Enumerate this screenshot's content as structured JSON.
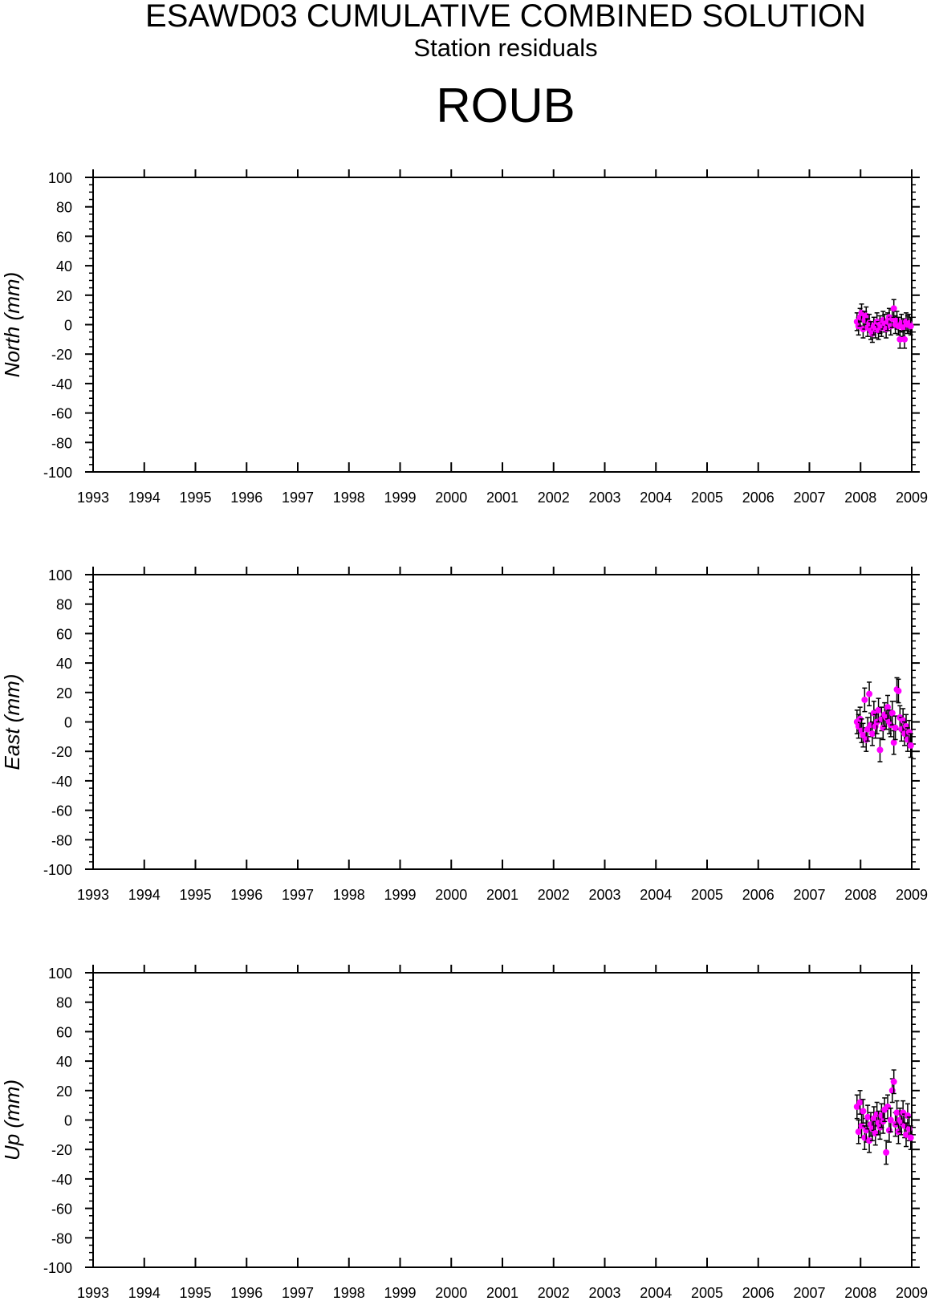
{
  "header": {
    "title": "ESAWD03 CUMULATIVE COMBINED SOLUTION",
    "subtitle": "Station residuals",
    "station": "ROUB"
  },
  "colors": {
    "marker": "#ff00ff",
    "errorbar": "#000000",
    "axis": "#000000"
  },
  "chart_data": [
    {
      "type": "scatter",
      "ylabel": "North (mm)",
      "xlim": [
        1993,
        2009
      ],
      "ylim": [
        -100,
        100
      ],
      "xticks": [
        "1993",
        "1994",
        "1995",
        "1996",
        "1997",
        "1998",
        "1999",
        "2000",
        "2001",
        "2002",
        "2003",
        "2004",
        "2005",
        "2006",
        "2007",
        "2008",
        "2009"
      ],
      "yticks": [
        "100",
        "80",
        "60",
        "40",
        "20",
        "0",
        "-20",
        "-40",
        "-60",
        "-80",
        "-100"
      ],
      "grid": false,
      "error_bar_mm": 6,
      "x": [
        2007.93,
        2007.96,
        2007.99,
        2008.02,
        2008.05,
        2008.08,
        2008.11,
        2008.14,
        2008.17,
        2008.2,
        2008.23,
        2008.26,
        2008.29,
        2008.32,
        2008.35,
        2008.38,
        2008.41,
        2008.44,
        2008.47,
        2008.5,
        2008.53,
        2008.56,
        2008.59,
        2008.62,
        2008.65,
        2008.68,
        2008.71,
        2008.74,
        2008.77,
        2008.8,
        2008.83,
        2008.86,
        2008.89,
        2008.92,
        2008.95,
        2008.98
      ],
      "y": [
        2,
        -1,
        5,
        8,
        -3,
        3,
        6,
        -2,
        1,
        -4,
        -6,
        -1,
        -3,
        2,
        -4,
        0,
        -2,
        3,
        1,
        -3,
        2,
        5,
        -1,
        4,
        11,
        0,
        3,
        -1,
        -10,
        1,
        -2,
        -10,
        2,
        0,
        1,
        -1
      ]
    },
    {
      "type": "scatter",
      "ylabel": "East (mm)",
      "xlim": [
        1993,
        2009
      ],
      "ylim": [
        -100,
        100
      ],
      "xticks": [
        "1993",
        "1994",
        "1995",
        "1996",
        "1997",
        "1998",
        "1999",
        "2000",
        "2001",
        "2002",
        "2003",
        "2004",
        "2005",
        "2006",
        "2007",
        "2008",
        "2009"
      ],
      "yticks": [
        "100",
        "80",
        "60",
        "40",
        "20",
        "0",
        "-20",
        "-40",
        "-60",
        "-80",
        "-100"
      ],
      "grid": false,
      "error_bar_mm": 8,
      "x": [
        2007.93,
        2007.96,
        2007.99,
        2008.02,
        2008.05,
        2008.08,
        2008.11,
        2008.14,
        2008.17,
        2008.2,
        2008.23,
        2008.26,
        2008.29,
        2008.32,
        2008.35,
        2008.38,
        2008.41,
        2008.44,
        2008.47,
        2008.5,
        2008.53,
        2008.56,
        2008.59,
        2008.62,
        2008.65,
        2008.68,
        2008.71,
        2008.74,
        2008.77,
        2008.8,
        2008.83,
        2008.86,
        2008.89,
        2008.92,
        2008.95,
        2008.98
      ],
      "y": [
        0,
        -3,
        2,
        -6,
        -9,
        15,
        -12,
        -5,
        19,
        -2,
        -8,
        6,
        -3,
        0,
        8,
        -19,
        2,
        -4,
        5,
        3,
        10,
        0,
        -2,
        6,
        -14,
        -4,
        22,
        21,
        3,
        -5,
        1,
        -8,
        -3,
        -12,
        -7,
        -16
      ]
    },
    {
      "type": "scatter",
      "ylabel": "Up (mm)",
      "xlim": [
        1993,
        2009
      ],
      "ylim": [
        -100,
        100
      ],
      "xticks": [
        "1993",
        "1994",
        "1995",
        "1996",
        "1997",
        "1998",
        "1999",
        "2000",
        "2001",
        "2002",
        "2003",
        "2004",
        "2005",
        "2006",
        "2007",
        "2008",
        "2009"
      ],
      "yticks": [
        "100",
        "80",
        "60",
        "40",
        "20",
        "0",
        "-20",
        "-40",
        "-60",
        "-80",
        "-100"
      ],
      "grid": false,
      "error_bar_mm": 8,
      "x": [
        2007.93,
        2007.96,
        2007.99,
        2008.02,
        2008.05,
        2008.08,
        2008.11,
        2008.14,
        2008.17,
        2008.2,
        2008.23,
        2008.26,
        2008.29,
        2008.32,
        2008.35,
        2008.38,
        2008.41,
        2008.44,
        2008.47,
        2008.5,
        2008.53,
        2008.56,
        2008.59,
        2008.62,
        2008.65,
        2008.68,
        2008.71,
        2008.74,
        2008.77,
        2008.8,
        2008.83,
        2008.86,
        2008.89,
        2008.92,
        2008.95,
        2008.98
      ],
      "y": [
        9,
        -8,
        12,
        -4,
        6,
        -12,
        -7,
        2,
        -14,
        -3,
        -6,
        1,
        -9,
        4,
        -2,
        -5,
        3,
        -1,
        7,
        -22,
        9,
        -7,
        0,
        20,
        26,
        -3,
        5,
        -8,
        0,
        -2,
        5,
        -4,
        -10,
        3,
        -6,
        -12
      ]
    }
  ]
}
